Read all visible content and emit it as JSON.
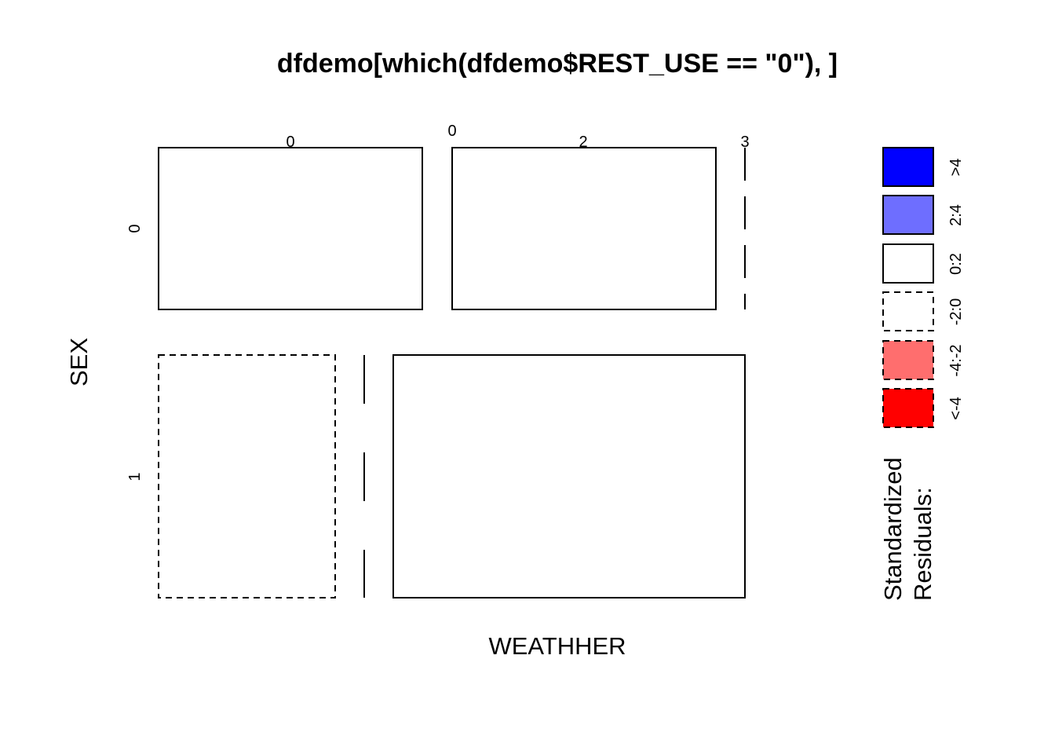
{
  "chart_data": {
    "type": "mosaic",
    "title": "dfdemo[which(dfdemo$REST_USE == \"0\"), ]",
    "xlabel": "WEATHHER",
    "ylabel": "SEX",
    "row_levels": [
      "0",
      "1"
    ],
    "col_levels": [
      "0",
      "2",
      "3"
    ],
    "row_split_tick": "0",
    "cells": [
      {
        "sex": "0",
        "weather": "0",
        "residual_class": "0:2",
        "zero": false
      },
      {
        "sex": "0",
        "weather": "2",
        "residual_class": "0:2",
        "zero": false
      },
      {
        "sex": "0",
        "weather": "3",
        "residual_class": "0:2",
        "zero": true
      },
      {
        "sex": "1",
        "weather": "0",
        "residual_class": "-2:0",
        "zero": false
      },
      {
        "sex": "1",
        "weather": "2",
        "residual_class": "-2:0",
        "zero": true
      },
      {
        "sex": "1",
        "weather": "3",
        "residual_class": "0:2",
        "zero": false
      }
    ],
    "legend": {
      "title_line1": "Standardized",
      "title_line2": "Residuals:",
      "entries": [
        {
          "label": ">4",
          "fill": "#0000FF",
          "dashed": false
        },
        {
          "label": "2:4",
          "fill": "#6E6EFF",
          "dashed": false
        },
        {
          "label": "0:2",
          "fill": "#FFFFFF",
          "dashed": false
        },
        {
          "label": "-2:0",
          "fill": "#FFFFFF",
          "dashed": true
        },
        {
          "label": "-4:-2",
          "fill": "#FF6E6E",
          "dashed": true
        },
        {
          "label": "<-4",
          "fill": "#FF0000",
          "dashed": true
        }
      ]
    }
  }
}
